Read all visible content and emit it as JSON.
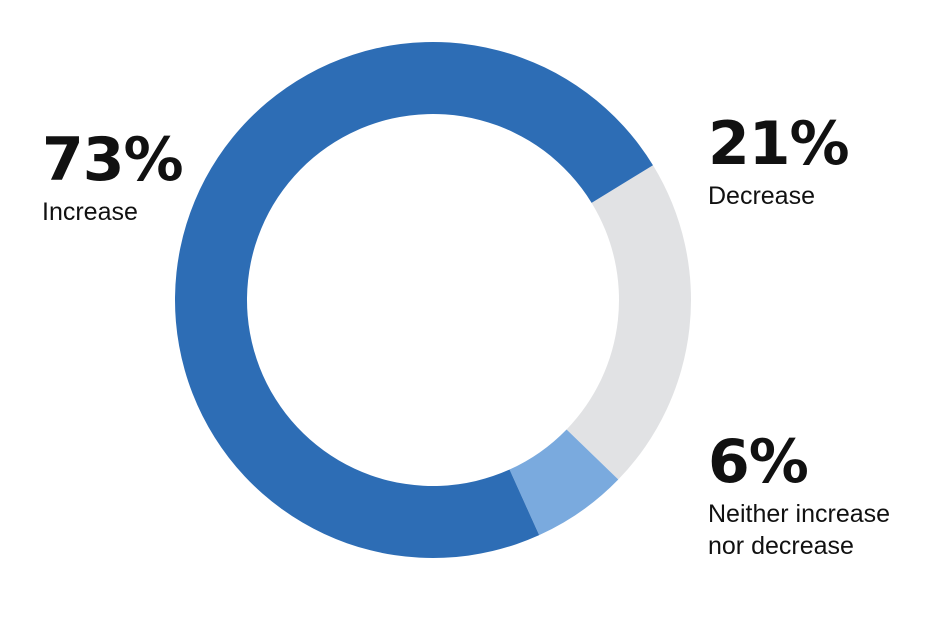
{
  "chart_data": {
    "type": "pie",
    "variant": "donut",
    "title": "",
    "slices": [
      {
        "label": "Increase",
        "value": 73,
        "display": "73%",
        "color": "#2d6db5"
      },
      {
        "label": "Decrease",
        "value": 21,
        "display": "21%",
        "color": "#e1e2e4"
      },
      {
        "label": "Neither increase nor decrease",
        "label_lines": [
          "Neither increase",
          "nor decrease"
        ],
        "value": 6,
        "display": "6%",
        "color": "#7aaade"
      }
    ],
    "legend": "none",
    "grid": false
  }
}
